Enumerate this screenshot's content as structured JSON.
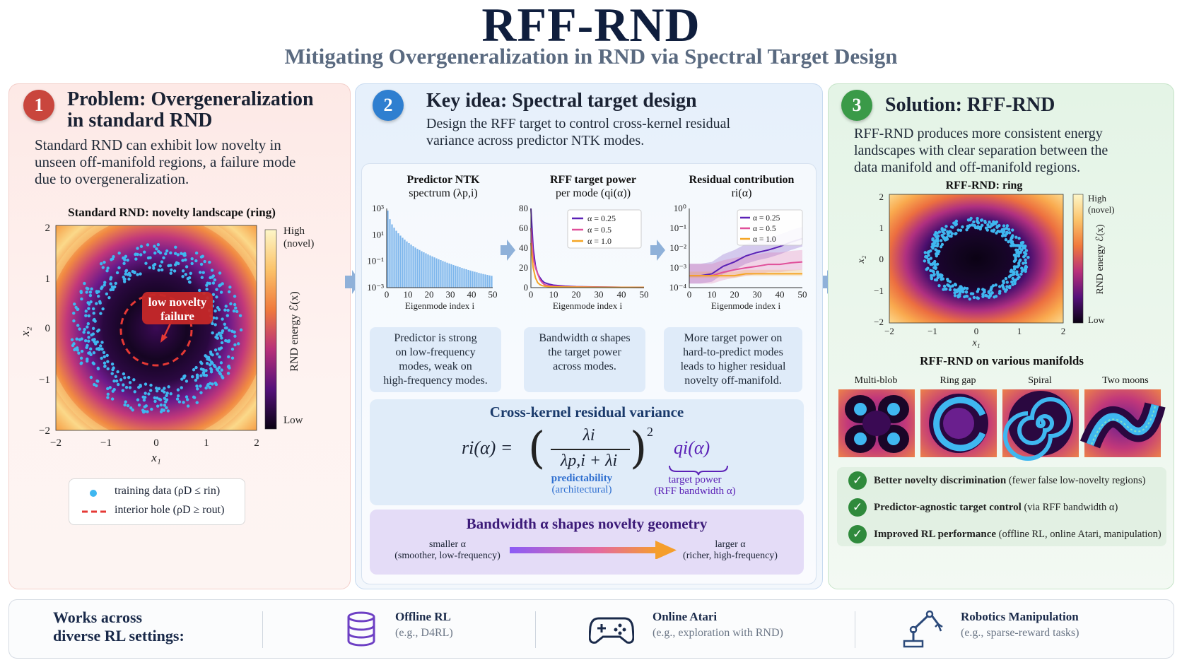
{
  "header": {
    "title": "RFF-RND",
    "subtitle": "Mitigating Overgeneralization in RND via Spectral Target Design"
  },
  "panel1": {
    "number": "1",
    "title_line1": "Problem: Overgeneralization",
    "title_line2": "in standard RND",
    "body_line1": "Standard RND can exhibit low novelty in",
    "body_line2": "unseen off-manifold regions, a failure mode",
    "body_line3": "due to overgeneralization.",
    "plot_title": "Standard RND: novelty landscape (ring)",
    "callout_line1": "low novelty",
    "callout_line2": "failure",
    "colorbar_high_line1": "High",
    "colorbar_high_line2": "(novel)",
    "colorbar_low": "Low",
    "colorbar_label": "RND energy ℰ(x)",
    "xlabel": "x₁",
    "ylabel": "x₂",
    "ticks": [
      "−2",
      "−1",
      "0",
      "1",
      "2"
    ],
    "legend_train": "training data (ρD ≤ rin)",
    "legend_hole": "interior hole (ρD ≥ rout)"
  },
  "panel2": {
    "number": "2",
    "title": "Key idea: Spectral target design",
    "body_line1": "Design the RFF target to control cross-kernel residual",
    "body_line2": "variance across predictor NTK modes.",
    "mini1_title_line1": "Predictor NTK",
    "mini1_title_line2": "spectrum (λp,i)",
    "mini2_title_line1": "RFF target power",
    "mini2_title_line2": "per mode (qi(α))",
    "mini3_title_line1": "Residual contribution",
    "mini3_title_line2": "ri(α)",
    "xlabel": "Eigenmode index i",
    "cap1": [
      "Predictor is strong",
      "on low-frequency",
      "modes, weak on",
      "high-frequency modes."
    ],
    "cap2": [
      "Bandwidth α shapes",
      "the target power",
      "across modes."
    ],
    "cap3": [
      "More target power on",
      "hard-to-predict modes",
      "leads to higher residual",
      "novelty off-manifold."
    ],
    "eq_title": "Cross-kernel residual variance",
    "eq_lhs": "ri(α) =",
    "eq_num": "λi",
    "eq_den": "λp,i + λi",
    "eq_pow": "2",
    "eq_q": "qi(α)",
    "eq_label1_line1": "predictability",
    "eq_label1_line2": "(architectural)",
    "eq_label2_line1": "target power",
    "eq_label2_line2": "(RFF bandwidth α)",
    "bw_title": "Bandwidth α shapes novelty geometry",
    "bw_left_line1": "smaller α",
    "bw_left_line2": "(smoother, low-frequency)",
    "bw_right_line1": "larger α",
    "bw_right_line2": "(richer, high-frequency)",
    "legend": [
      "α = 0.25",
      "α = 0.5",
      "α = 1.0"
    ]
  },
  "panel3": {
    "number": "3",
    "title": "Solution: RFF-RND",
    "body_line1": "RFF-RND produces more consistent energy",
    "body_line2": "landscapes with clear separation between the",
    "body_line3": "data manifold and off-manifold regions.",
    "plot_title": "RFF-RND: ring",
    "manifolds_title": "RFF-RND on various manifolds",
    "manifolds": [
      "Multi-blob",
      "Ring gap",
      "Spiral",
      "Two moons"
    ],
    "checks": [
      {
        "bold": "Better novelty discrimination",
        "rest": " (fewer false low-novelty regions)"
      },
      {
        "bold": "Predictor-agnostic target control",
        "rest": " (via RFF bandwidth α)"
      },
      {
        "bold": "Improved RL performance",
        "rest": " (offline RL, online Atari, manipulation)"
      }
    ]
  },
  "footer": {
    "lead_line1": "Works across",
    "lead_line2": "diverse RL settings:",
    "items": [
      {
        "title": "Offline RL",
        "sub": "(e.g., D4RL)",
        "icon": "database-icon"
      },
      {
        "title": "Online Atari",
        "sub": "(e.g., exploration with RND)",
        "icon": "gamepad-icon"
      },
      {
        "title": "Robotics Manipulation",
        "sub": "(e.g., sparse-reward tasks)",
        "icon": "robot-arm-icon"
      }
    ]
  },
  "colors": {
    "red_badge": "#c9463d",
    "blue_badge": "#2f7fd0",
    "green_badge": "#3a9a48",
    "dots": "#3fb7f0",
    "alpha025": "#5b21b6",
    "alpha05": "#e0509a",
    "alpha10": "#f5a524"
  },
  "chart_data": [
    {
      "type": "bar",
      "title": "Predictor NTK spectrum (λp,i)",
      "xlabel": "Eigenmode index i",
      "ylabel": "",
      "yscale": "log",
      "x_ticks": [
        "0",
        "10",
        "20",
        "30",
        "40",
        "50"
      ],
      "y_ticks": [
        "10³",
        "10¹",
        "10⁻¹",
        "10⁻³"
      ],
      "ylim": [
        0.001,
        3000
      ],
      "values": [
        2000,
        400,
        150,
        80,
        45,
        28,
        18,
        12,
        8.5,
        6,
        4.4,
        3.3,
        2.5,
        1.9,
        1.5,
        1.2,
        0.95,
        0.78,
        0.64,
        0.52,
        0.43,
        0.36,
        0.3,
        0.25,
        0.21,
        0.18,
        0.15,
        0.13,
        0.11,
        0.095,
        0.082,
        0.071,
        0.062,
        0.054,
        0.047,
        0.041,
        0.036,
        0.032,
        0.028,
        0.025,
        0.022,
        0.02,
        0.018,
        0.016,
        0.0145,
        0.013,
        0.012,
        0.011,
        0.01,
        0.0092
      ]
    },
    {
      "type": "line",
      "title": "RFF target power per mode (qi(α))",
      "xlabel": "Eigenmode index i",
      "ylim": [
        0,
        80
      ],
      "y_ticks": [
        "80",
        "60",
        "40",
        "20",
        "0"
      ],
      "x_ticks": [
        "0",
        "10",
        "20",
        "30",
        "40",
        "50"
      ],
      "x": [
        0,
        1,
        2,
        3,
        4,
        5,
        6,
        8,
        10,
        15,
        20,
        30,
        40,
        50
      ],
      "series": [
        {
          "name": "α = 0.25",
          "values": [
            80,
            40,
            22,
            14,
            10,
            7,
            5,
            3.5,
            2.5,
            1.5,
            1,
            0.6,
            0.4,
            0.3
          ]
        },
        {
          "name": "α = 0.5",
          "values": [
            60,
            30,
            20,
            14,
            8,
            5,
            3,
            2,
            1.5,
            1,
            0.8,
            0.5,
            0.4,
            0.3
          ]
        },
        {
          "name": "α = 1.0",
          "values": [
            45,
            20,
            10,
            5,
            3,
            2,
            1.5,
            1,
            0.8,
            0.6,
            0.5,
            0.4,
            0.3,
            0.3
          ]
        }
      ],
      "legend": "top-right"
    },
    {
      "type": "line",
      "title": "Residual contribution ri(α)",
      "xlabel": "Eigenmode index i",
      "yscale": "log",
      "ylim": [
        0.0001,
        1
      ],
      "y_ticks": [
        "10⁰",
        "10⁻¹",
        "10⁻²",
        "10⁻³",
        "10⁻⁴"
      ],
      "x_ticks": [
        "0",
        "10",
        "20",
        "30",
        "40",
        "50"
      ],
      "x": [
        0,
        5,
        10,
        15,
        20,
        25,
        30,
        35,
        40,
        45,
        50
      ],
      "series": [
        {
          "name": "α = 0.25",
          "values": [
            0.0004,
            0.0004,
            0.0005,
            0.0012,
            0.002,
            0.004,
            0.006,
            0.008,
            0.012,
            0.02,
            0.03
          ]
        },
        {
          "name": "α = 0.5",
          "values": [
            0.0004,
            0.0004,
            0.0004,
            0.0006,
            0.0008,
            0.001,
            0.0012,
            0.0015,
            0.0015,
            0.0018,
            0.002
          ]
        },
        {
          "name": "α = 1.0",
          "values": [
            0.0004,
            0.0004,
            0.0004,
            0.0004,
            0.0004,
            0.0005,
            0.0005,
            0.0005,
            0.0005,
            0.0005,
            0.0005
          ]
        }
      ],
      "legend": "top-right"
    }
  ]
}
